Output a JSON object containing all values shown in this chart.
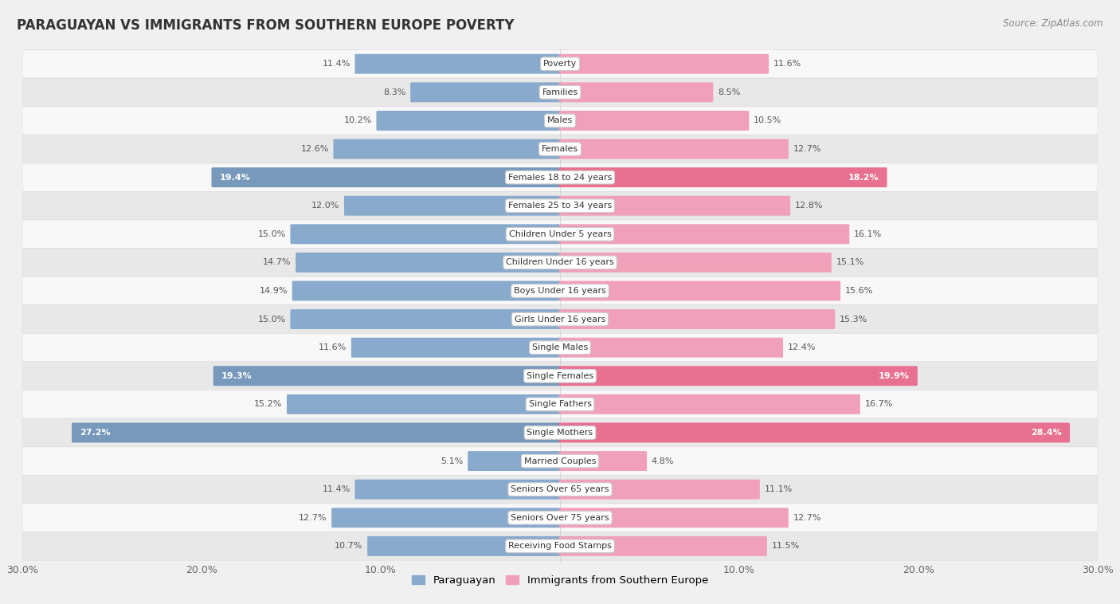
{
  "title": "PARAGUAYAN VS IMMIGRANTS FROM SOUTHERN EUROPE POVERTY",
  "source": "Source: ZipAtlas.com",
  "categories": [
    "Poverty",
    "Families",
    "Males",
    "Females",
    "Females 18 to 24 years",
    "Females 25 to 34 years",
    "Children Under 5 years",
    "Children Under 16 years",
    "Boys Under 16 years",
    "Girls Under 16 years",
    "Single Males",
    "Single Females",
    "Single Fathers",
    "Single Mothers",
    "Married Couples",
    "Seniors Over 65 years",
    "Seniors Over 75 years",
    "Receiving Food Stamps"
  ],
  "paraguayan": [
    11.4,
    8.3,
    10.2,
    12.6,
    19.4,
    12.0,
    15.0,
    14.7,
    14.9,
    15.0,
    11.6,
    19.3,
    15.2,
    27.2,
    5.1,
    11.4,
    12.7,
    10.7
  ],
  "immigrants": [
    11.6,
    8.5,
    10.5,
    12.7,
    18.2,
    12.8,
    16.1,
    15.1,
    15.6,
    15.3,
    12.4,
    19.9,
    16.7,
    28.4,
    4.8,
    11.1,
    12.7,
    11.5
  ],
  "blue_color": "#88aacc",
  "pink_color": "#f0a0b8",
  "blue_highlight": "#7799bb",
  "pink_highlight": "#e87090",
  "bg_color": "#f0f0f0",
  "row_bg_light": "#f8f8f8",
  "row_bg_dark": "#e8e8e8",
  "row_border": "#dddddd",
  "xlim": 30.0,
  "highlight_threshold": 17.0,
  "label_paraguayan": "Paraguayan",
  "label_immigrants": "Immigrants from Southern Europe",
  "center_label_bg": "#ffffff",
  "center_label_color": "#333333",
  "value_color_normal": "#555555",
  "value_color_highlight": "#ffffff"
}
